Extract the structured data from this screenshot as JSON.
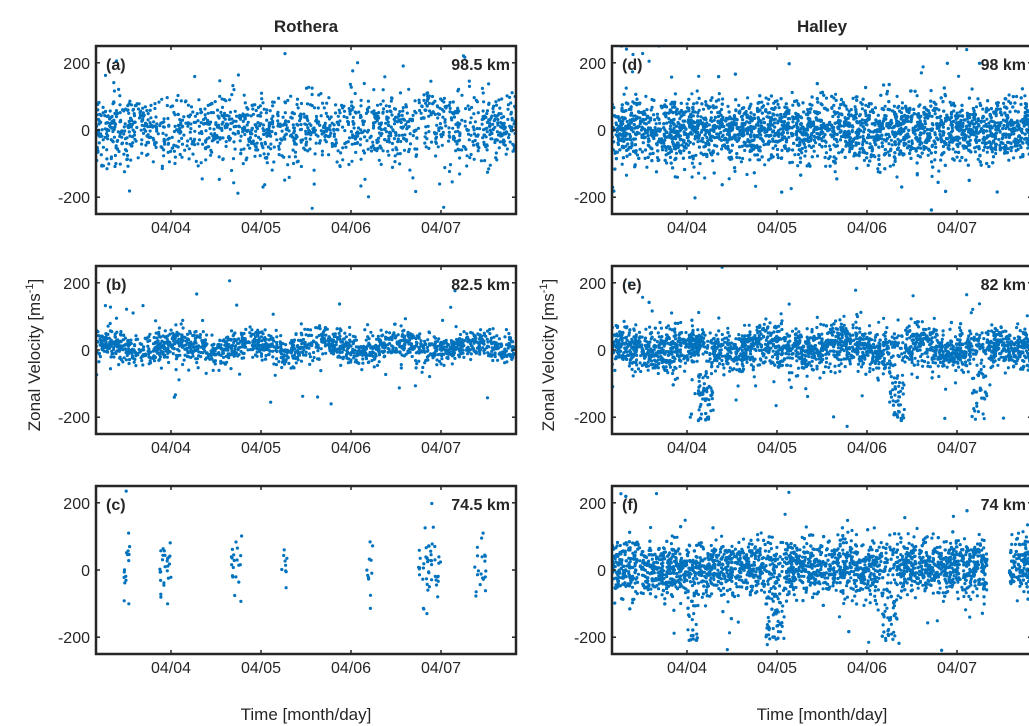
{
  "figure": {
    "columns": [
      {
        "title": "Rothera",
        "xlabel": "Time [month/day]"
      },
      {
        "title": "Halley",
        "xlabel": "Time [month/day]"
      }
    ],
    "ylabel": "Zonal Velocity [ms",
    "ylabel_sup": "-1",
    "ylabel_close": "]",
    "marker_color": "#0072BD"
  },
  "chart_data": [
    {
      "type": "scatter",
      "panel": "(a)",
      "station": "Rothera",
      "altitude": "98.5 km",
      "x_ticks": [
        "04/04",
        "04/05",
        "04/06",
        "04/07"
      ],
      "y_ticks": [
        "-200",
        "0",
        "200"
      ],
      "ylim": [
        -250,
        250
      ],
      "xlim": [
        "04/03 04:00",
        "04/07 20:00"
      ],
      "mean": 0,
      "spread": 50,
      "coverage": "nearly continuous, burst near 04/06 18:00",
      "color": "#0072BD"
    },
    {
      "type": "scatter",
      "panel": "(b)",
      "station": "Rothera",
      "altitude": "82.5 km",
      "x_ticks": [
        "04/04",
        "04/05",
        "04/06",
        "04/07"
      ],
      "y_ticks": [
        "-200",
        "0",
        "200"
      ],
      "ylim": [
        -250,
        250
      ],
      "xlim": [
        "04/03 04:00",
        "04/07 20:00"
      ],
      "mean": 10,
      "spread": 22,
      "coverage": "continuous with small gaps",
      "color": "#0072BD"
    },
    {
      "type": "scatter",
      "panel": "(c)",
      "station": "Rothera",
      "altitude": "74.5 km",
      "x_ticks": [
        "04/04",
        "04/05",
        "04/06",
        "04/07"
      ],
      "y_ticks": [
        "-200",
        "0",
        "200"
      ],
      "ylim": [
        -250,
        250
      ],
      "xlim": [
        "04/03 04:00",
        "04/07 20:00"
      ],
      "mean": 10,
      "spread": 45,
      "coverage": "sparse clusters near 04/03 12h, 04/03 22h, 04/04 17h, 04/05 06h, 04/06 05h, 04/06 20h, 04/07 10h",
      "color": "#0072BD"
    },
    {
      "type": "scatter",
      "panel": "(d)",
      "station": "Halley",
      "altitude": "98 km",
      "x_ticks": [
        "04/04",
        "04/05",
        "04/06",
        "04/07"
      ],
      "y_ticks": [
        "-200",
        "0",
        "200"
      ],
      "ylim": [
        -250,
        250
      ],
      "xlim": [
        "04/03 04:00",
        "04/07 20:00"
      ],
      "mean": 0,
      "spread": 45,
      "coverage": "dense and continuous",
      "color": "#0072BD"
    },
    {
      "type": "scatter",
      "panel": "(e)",
      "station": "Halley",
      "altitude": "82 km",
      "x_ticks": [
        "04/04",
        "04/05",
        "04/06",
        "04/07"
      ],
      "y_ticks": [
        "-200",
        "0",
        "200"
      ],
      "ylim": [
        -250,
        250
      ],
      "xlim": [
        "04/03 04:00",
        "04/07 20:00"
      ],
      "mean": 5,
      "spread": 30,
      "coverage": "dense, negative excursions to -200 near 04/04",
      "color": "#0072BD"
    },
    {
      "type": "scatter",
      "panel": "(f)",
      "station": "Halley",
      "altitude": "74 km",
      "x_ticks": [
        "04/04",
        "04/05",
        "04/06",
        "04/07"
      ],
      "y_ticks": [
        "-200",
        "0",
        "200"
      ],
      "ylim": [
        -250,
        250
      ],
      "xlim": [
        "04/03 04:00",
        "04/07 20:00"
      ],
      "mean": 5,
      "spread": 40,
      "coverage": "dense, gap near 04/07 08h",
      "color": "#0072BD"
    }
  ]
}
